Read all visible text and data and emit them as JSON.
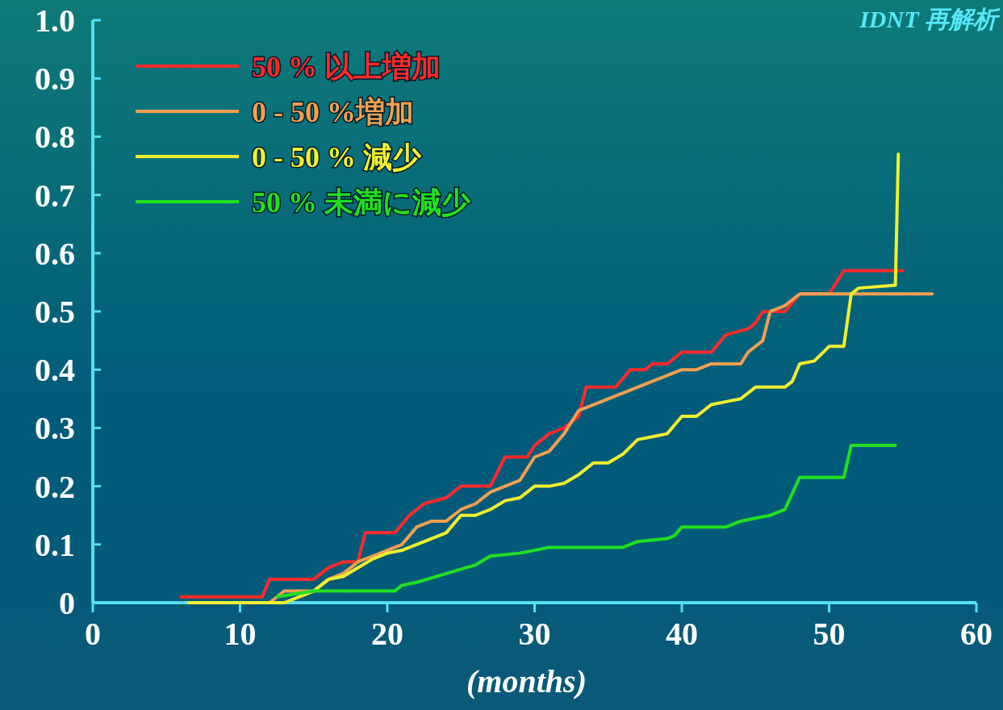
{
  "chart_data": {
    "type": "line",
    "title": "IDNT 再解析",
    "xlabel": "(months)",
    "xlim": [
      0,
      60
    ],
    "ylim": [
      0,
      1
    ],
    "xticks": [
      0,
      10,
      20,
      30,
      40,
      50,
      60
    ],
    "yticks": [
      0,
      0.1,
      0.2,
      0.3,
      0.4,
      0.5,
      0.6,
      0.7,
      0.8,
      0.9,
      {
        "value": 1,
        "label": "1.0"
      }
    ],
    "grid": false,
    "legend": "top left",
    "marker": "none",
    "line_style": "solid",
    "series": [
      {
        "name": "50 % 以上増加",
        "color": "#ff2a2a",
        "x": [
          6,
          11.5,
          12,
          15,
          16,
          17,
          18,
          18.5,
          20.5,
          21.5,
          22,
          22.5,
          24,
          25,
          27,
          28,
          29.5,
          30,
          31,
          32,
          33,
          33.5,
          35.5,
          36.5,
          37.5,
          38,
          39,
          40,
          42,
          43,
          44.5,
          45,
          45.5,
          47,
          48,
          50,
          51,
          55
        ],
        "values": [
          0.01,
          0.01,
          0.04,
          0.04,
          0.06,
          0.07,
          0.07,
          0.12,
          0.12,
          0.15,
          0.16,
          0.17,
          0.18,
          0.2,
          0.2,
          0.25,
          0.25,
          0.27,
          0.29,
          0.3,
          0.32,
          0.37,
          0.37,
          0.4,
          0.4,
          0.41,
          0.41,
          0.43,
          0.43,
          0.46,
          0.47,
          0.48,
          0.5,
          0.5,
          0.53,
          0.53,
          0.57,
          0.57
        ]
      },
      {
        "name": "0 - 50 %増加",
        "color": "#f0a050",
        "x": [
          6.5,
          12,
          13,
          15,
          16,
          17,
          18,
          19,
          20,
          21,
          22,
          23,
          24,
          25,
          26,
          27,
          28,
          29,
          30,
          31,
          32,
          33,
          34,
          35,
          36,
          37,
          38,
          39,
          40,
          41,
          42,
          43,
          44,
          44.5,
          45.5,
          46,
          47,
          48,
          50,
          57
        ],
        "values": [
          0,
          0,
          0.02,
          0.02,
          0.04,
          0.05,
          0.07,
          0.08,
          0.09,
          0.1,
          0.13,
          0.14,
          0.14,
          0.16,
          0.17,
          0.19,
          0.2,
          0.21,
          0.25,
          0.26,
          0.29,
          0.33,
          0.34,
          0.35,
          0.36,
          0.37,
          0.38,
          0.39,
          0.4,
          0.4,
          0.41,
          0.41,
          0.41,
          0.43,
          0.45,
          0.5,
          0.51,
          0.53,
          0.53,
          0.53
        ]
      },
      {
        "name": "0 - 50 % 減少",
        "color": "#f0f030",
        "x": [
          6.5,
          13,
          14,
          15,
          16,
          17,
          18,
          19,
          20,
          21,
          22,
          23,
          24,
          25,
          26,
          27,
          28,
          29,
          30,
          31,
          32,
          33,
          34,
          35,
          36,
          37,
          38,
          39,
          40,
          41,
          42,
          43,
          44,
          45,
          47,
          47.5,
          48,
          49,
          50,
          51,
          51.5,
          52,
          54.5,
          54.7
        ],
        "values": [
          0,
          0,
          0.01,
          0.02,
          0.04,
          0.045,
          0.06,
          0.075,
          0.085,
          0.09,
          0.1,
          0.11,
          0.12,
          0.15,
          0.15,
          0.16,
          0.175,
          0.18,
          0.2,
          0.2,
          0.205,
          0.22,
          0.24,
          0.24,
          0.255,
          0.28,
          0.285,
          0.29,
          0.32,
          0.32,
          0.34,
          0.345,
          0.35,
          0.37,
          0.37,
          0.38,
          0.41,
          0.415,
          0.44,
          0.44,
          0.53,
          0.54,
          0.545,
          0.77
        ]
      },
      {
        "name": "50 % 未満に減少",
        "color": "#20e020",
        "x": [
          12.5,
          15,
          20.5,
          21,
          22,
          24,
          26,
          27,
          29,
          30,
          31,
          33,
          36,
          37,
          39,
          39.5,
          40,
          43,
          44,
          45,
          46,
          47,
          48,
          51,
          51.5,
          54.5
        ],
        "values": [
          0.01,
          0.02,
          0.02,
          0.03,
          0.035,
          0.05,
          0.065,
          0.08,
          0.085,
          0.09,
          0.095,
          0.095,
          0.095,
          0.105,
          0.11,
          0.115,
          0.13,
          0.13,
          0.14,
          0.145,
          0.15,
          0.16,
          0.215,
          0.215,
          0.27,
          0.27
        ]
      }
    ]
  }
}
